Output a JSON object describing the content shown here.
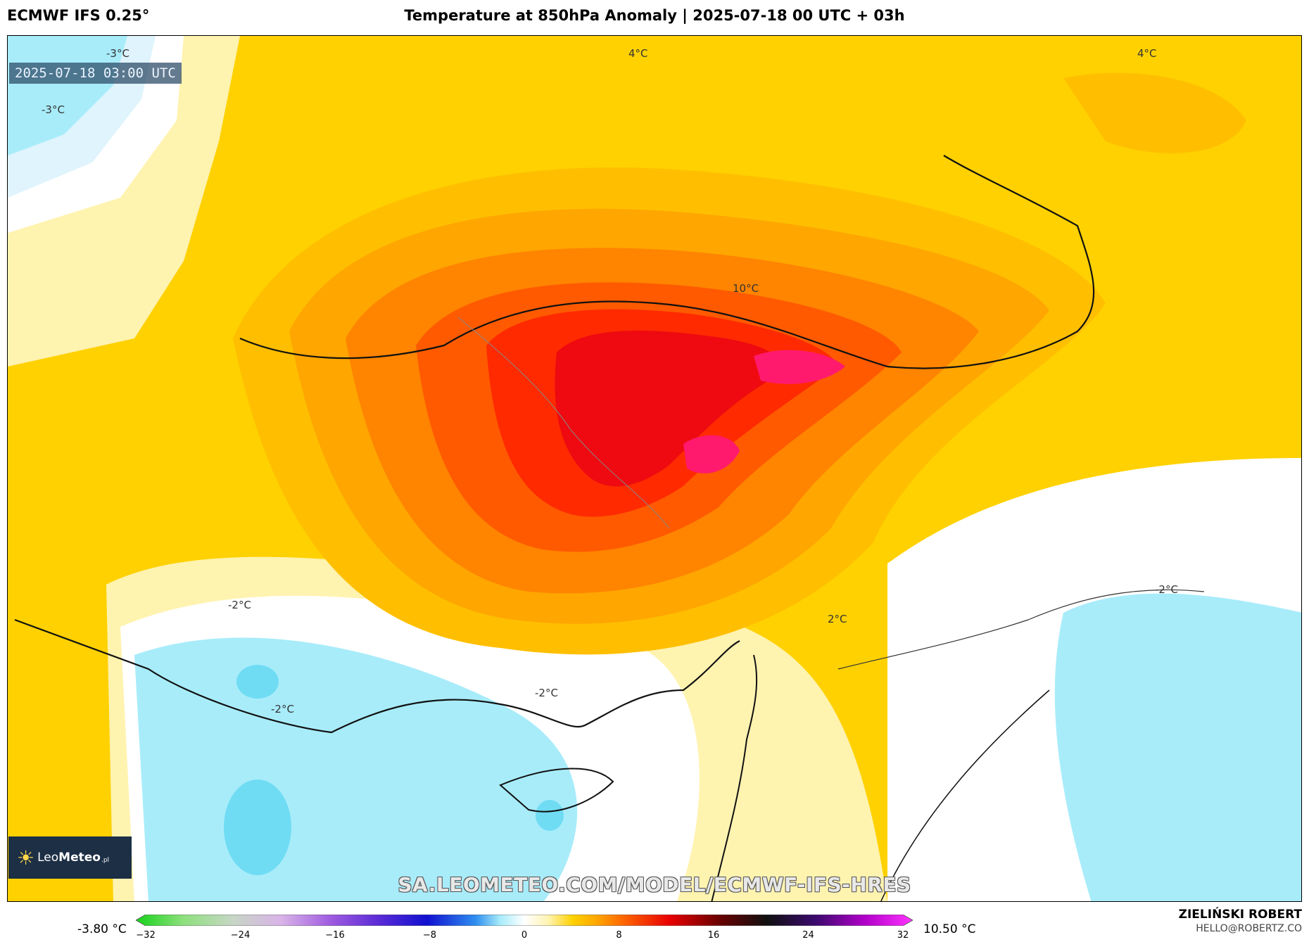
{
  "header": {
    "model": "ECMWF IFS 0.25°",
    "title": "Temperature at 850hPa Anomaly | 2025-07-18 00 UTC + 03h"
  },
  "map": {
    "valid_time": "2025-07-18 03:00 UTC",
    "contour_labels": [
      "-3°C",
      "-3°C",
      "4°C",
      "4°C",
      "10°C",
      "-2°C",
      "-2°C",
      "-2°C",
      "2°C",
      "-2°C"
    ],
    "url_watermark": "SA.LEOMETEO.COM/MODEL/ECMWF-IFS-HRES",
    "logo": {
      "name_light": "Leo",
      "name_bold": "Meteo",
      "suffix": ".pl"
    }
  },
  "colorbar": {
    "min_label": "-3.80 °C",
    "max_label": "10.50 °C",
    "range": [
      -32,
      32
    ],
    "ticks": [
      "-32",
      "-24",
      "-16",
      "-8",
      "0",
      "8",
      "16",
      "24",
      "32"
    ],
    "colors": {
      "-32": "#16d21a",
      "-28": "#8fe07f",
      "-24": "#c7d6c6",
      "-20": "#d9b3e8",
      "-16": "#a05ce0",
      "-12": "#5b2bd6",
      "-8": "#1010d0",
      "-4": "#2f8ff0",
      "-2": "#a8ecfa",
      "0": "#ffffff",
      "2": "#fff3b0",
      "4": "#ffd100",
      "6": "#ffa600",
      "8": "#ff6a00",
      "12": "#e80000",
      "16": "#6b0000",
      "20": "#101010",
      "24": "#3b0a6e",
      "28": "#b000c8",
      "32": "#ff33ff"
    }
  },
  "footer": {
    "author": "ZIELIŃSKI ROBERT",
    "email": "HELLO@ROBERTZ.CO"
  }
}
